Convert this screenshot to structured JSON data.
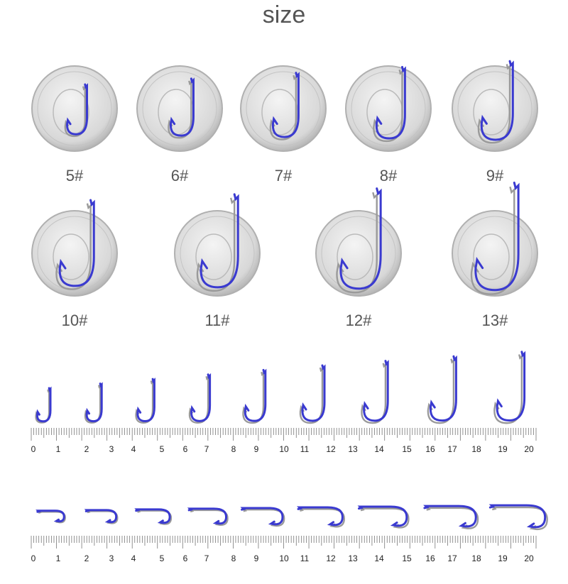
{
  "title": "size",
  "sizes": [
    "5#",
    "6#",
    "7#",
    "8#",
    "9#",
    "10#",
    "11#",
    "12#",
    "13#"
  ],
  "ruler": {
    "unit_labels": [
      "0",
      "1",
      "2",
      "3",
      "4",
      "5",
      "6",
      "7",
      "8",
      "9",
      "10",
      "11",
      "12",
      "13",
      "14",
      "15",
      "16",
      "17",
      "18",
      "19",
      "20"
    ]
  },
  "colors": {
    "hook": "#3a3ad0",
    "coin": "#d8d8d8",
    "text": "#555555"
  }
}
